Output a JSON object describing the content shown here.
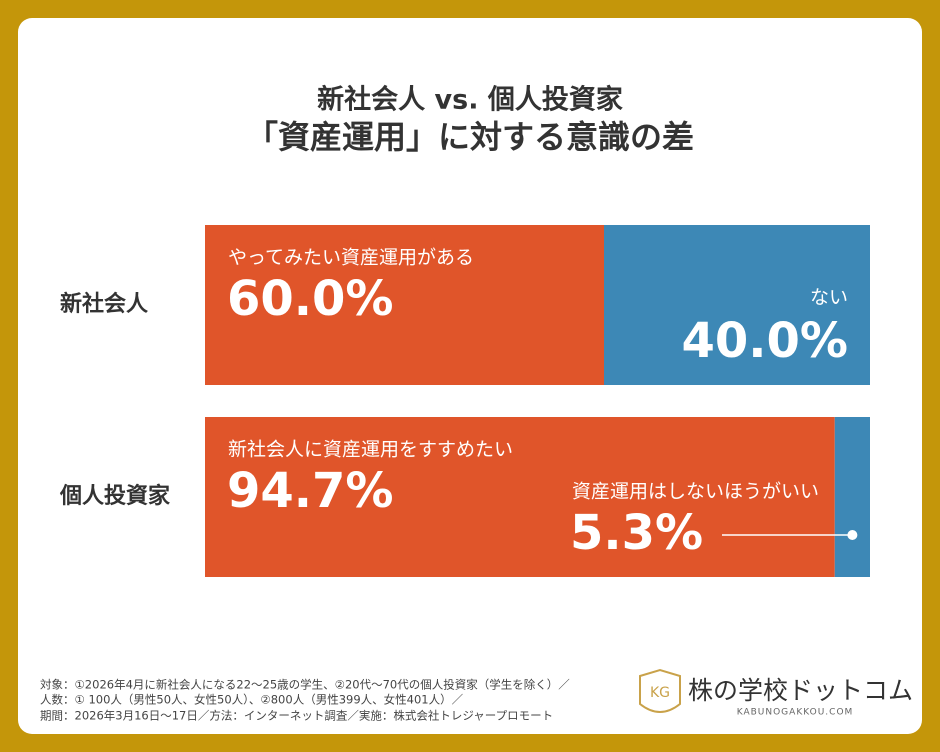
{
  "chart_data": {
    "type": "stacked-bar",
    "title": "新社会人 vs. 個人投資家",
    "subtitle": "「資産運用」に対する意識の差",
    "xlim": [
      0,
      100
    ],
    "bars": [
      {
        "category": "新社会人",
        "segments": [
          {
            "label": "やってみたい資産運用がある",
            "value": 60,
            "value_label": "60.0%",
            "color": "#e0552a"
          },
          {
            "label": "ない",
            "value": 40,
            "value_label": "40.0%",
            "color": "#3d88b6"
          }
        ]
      },
      {
        "category": "個人投資家",
        "segments": [
          {
            "label": "新社会人に資産運用をすすめたい",
            "value": 94.7,
            "value_label": "94.7%",
            "color": "#e0552a"
          },
          {
            "label": "資産運用はしないほうがいい",
            "value": 5.3,
            "value_label": "5.3%",
            "color": "#3d88b6"
          }
        ]
      }
    ],
    "notes": [
      "対象：①2026年4月に新社会人になる22〜25歳の学生、②20代〜70代の個人投資家（学生を除く）／",
      "人数：① 100人（男性50人、女性50人）、②800人（男性399人、女性401人）／",
      "期間：2026年3月16日〜17日／方法：インターネット調査／実施：株式会社トレジャープロモート"
    ],
    "logo": {
      "name": "株の学校ドットコム",
      "url": "KABUNOGAKKOU.COM"
    }
  }
}
